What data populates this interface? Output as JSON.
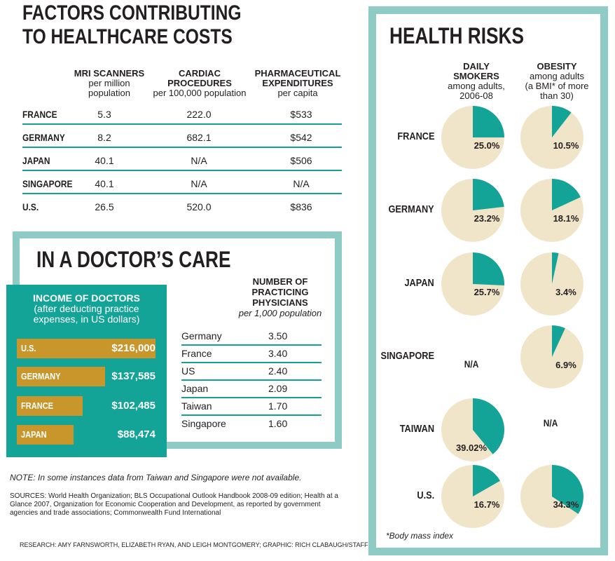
{
  "costs": {
    "title_line1": "FACTORS CONTRIBUTING",
    "title_line2": "TO HEALTHCARE COSTS",
    "columns": [
      {
        "title": "MRI SCANNERS",
        "sub1": "per million",
        "sub2": "population"
      },
      {
        "title": "CARDIAC",
        "title2": "PROCEDURES",
        "sub1": "per 100,000 population"
      },
      {
        "title": "PHARMACEUTICAL",
        "title2": "EXPENDITURES",
        "sub1": "per capita"
      }
    ],
    "rows": [
      {
        "country": "FRANCE",
        "mri": "5.3",
        "cardiac": "222.0",
        "pharma": "$533"
      },
      {
        "country": "GERMANY",
        "mri": "8.2",
        "cardiac": "682.1",
        "pharma": "$542"
      },
      {
        "country": "JAPAN",
        "mri": "40.1",
        "cardiac": "N/A",
        "pharma": "$506"
      },
      {
        "country": "SINGAPORE",
        "mri": "40.1",
        "cardiac": "N/A",
        "pharma": "N/A"
      },
      {
        "country": "U.S.",
        "mri": "26.5",
        "cardiac": "520.0",
        "pharma": "$836"
      }
    ]
  },
  "doctors": {
    "title": "IN A DOCTOR’S CARE",
    "income_title": "INCOME OF DOCTORS",
    "income_sub1": "(after deducting practice",
    "income_sub2": "expenses, in US dollars)",
    "income": [
      {
        "country": "U.S.",
        "value": 216000,
        "label": "$216,000"
      },
      {
        "country": "GERMANY",
        "value": 137585,
        "label": "$137,585"
      },
      {
        "country": "FRANCE",
        "value": 102485,
        "label": "$102,485"
      },
      {
        "country": "JAPAN",
        "value": 88474,
        "label": "$88,474"
      }
    ],
    "physicians_head1": "NUMBER OF",
    "physicians_head2": "PRACTICING",
    "physicians_head3": "PHYSICIANS",
    "physicians_sub": "per 1,000 population",
    "physicians": [
      {
        "country": "Germany",
        "value": "3.50"
      },
      {
        "country": "France",
        "value": "3.40"
      },
      {
        "country": "US",
        "value": "2.40"
      },
      {
        "country": "Japan",
        "value": "2.09"
      },
      {
        "country": "Taiwan",
        "value": "1.70"
      },
      {
        "country": "Singapore",
        "value": "1.60"
      }
    ]
  },
  "notes": {
    "note": "NOTE: In some instances data from Taiwan and Singapore were not available.",
    "sources": "SOURCES: World Health Organization; BLS Occupational Outlook Handbook 2008-09 edition; Health at a Glance 2007, Organization for Economic Cooperation and Development, as reported by government agencies and trade associations; Commonwealth Fund International",
    "research": "RESEARCH: AMY FARNSWORTH, ELIZABETH RYAN, AND LEIGH MONTGOMERY; GRAPHIC: RICH CLABAUGH/STAFF"
  },
  "health": {
    "title": "HEALTH RISKS",
    "smokers_head1": "DAILY",
    "smokers_head2": "SMOKERS",
    "smokers_sub1": "among adults,",
    "smokers_sub2": "2006-08",
    "obesity_head": "OBESITY",
    "obesity_sub1": "among adults",
    "obesity_sub2": "(a BMI* of more",
    "obesity_sub3": "than 30)",
    "na_label": "N/A",
    "bmi_note": "*Body mass index"
  },
  "colors": {
    "teal": "#13a497",
    "frame": "#8ecbc4",
    "bar": "#c9962b",
    "pie_bg": "#f1e5c9"
  },
  "chart_data": [
    {
      "type": "bar",
      "title": "INCOME OF DOCTORS (after deducting practice expenses, in US dollars)",
      "categories": [
        "U.S.",
        "GERMANY",
        "FRANCE",
        "JAPAN"
      ],
      "values": [
        216000,
        137585,
        102485,
        88474
      ]
    },
    {
      "type": "pie",
      "title": "DAILY SMOKERS among adults, 2006-08",
      "categories": [
        "FRANCE",
        "GERMANY",
        "JAPAN",
        "SINGAPORE",
        "TAIWAN",
        "U.S."
      ],
      "values": [
        25.0,
        23.2,
        25.7,
        null,
        39.02,
        16.7
      ],
      "labels": [
        "25.0%",
        "23.2%",
        "25.7%",
        "N/A",
        "39.02%",
        "16.7%"
      ]
    },
    {
      "type": "pie",
      "title": "OBESITY among adults (a BMI* of more than 30)",
      "categories": [
        "FRANCE",
        "GERMANY",
        "JAPAN",
        "SINGAPORE",
        "TAIWAN",
        "U.S."
      ],
      "values": [
        10.5,
        18.1,
        3.4,
        6.9,
        null,
        34.3
      ],
      "labels": [
        "10.5%",
        "18.1%",
        "3.4%",
        "6.9%",
        "N/A",
        "34.3%"
      ]
    }
  ]
}
